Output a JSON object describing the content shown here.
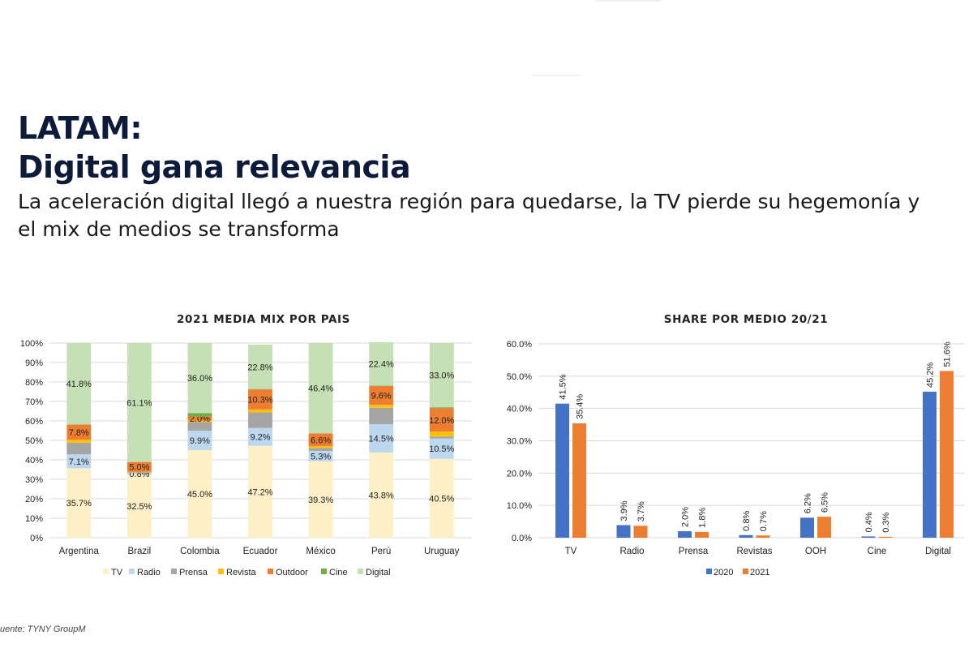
{
  "header": {
    "title_line1": "LATAM:",
    "title_line2": "Digital gana relevancia",
    "subtitle_line1": "La aceleración digital llegó a nuestra región para quedarse, la TV pierde su hegemonía y",
    "subtitle_line2": "el mix de medios se transforma"
  },
  "source": "uente: TYNY GroupM",
  "colors": {
    "TV": "#fdefc6",
    "Radio": "#bdd7ee",
    "Prensa": "#a5a5a5",
    "Revista": "#ffc000",
    "Outdoor": "#ed7d31",
    "Cine": "#70ad47",
    "Digital": "#c5e0b4",
    "y2020": "#4472c4",
    "y2021": "#ed7d31"
  },
  "chart_data": [
    {
      "type": "bar",
      "stacked": true,
      "title": "2021 MEDIA MIX POR PAIS",
      "categories": [
        "Argentina",
        "Brazil",
        "Colombia",
        "Ecuador",
        "México",
        "Perú",
        "Uruguay"
      ],
      "y_ticks": [
        "0%",
        "10%",
        "20%",
        "30%",
        "40%",
        "50%",
        "60%",
        "70%",
        "80%",
        "90%",
        "100%"
      ],
      "ylim": [
        0,
        100
      ],
      "legend_position": "bottom",
      "series": [
        {
          "name": "TV",
          "values": [
            35.7,
            32.5,
            45.0,
            47.2,
            39.3,
            43.8,
            40.5
          ],
          "labels": [
            "35.7%",
            "32.5%",
            "45.0%",
            "47.2%",
            "39.3%",
            "43.8%",
            "40.5%"
          ]
        },
        {
          "name": "Radio",
          "values": [
            7.1,
            0.8,
            9.9,
            9.2,
            5.3,
            14.5,
            10.5
          ],
          "labels": [
            "7.1%",
            "0.8%",
            "9.9%",
            "9.2%",
            "5.3%",
            "14.5%",
            "10.5%"
          ]
        },
        {
          "name": "Prensa",
          "values": [
            6.0,
            0.3,
            4.5,
            8.0,
            1.5,
            8.5,
            1.0
          ],
          "labels": [
            "",
            "",
            "",
            "",
            "",
            "",
            ""
          ]
        },
        {
          "name": "Revista",
          "values": [
            1.5,
            0.3,
            0.8,
            1.5,
            0.9,
            1.5,
            2.5
          ],
          "labels": [
            "",
            "",
            "",
            "",
            "",
            "",
            ""
          ]
        },
        {
          "name": "Outdoor",
          "values": [
            7.8,
            5.0,
            2.0,
            10.3,
            6.6,
            9.6,
            12.0
          ],
          "labels": [
            "7.8%",
            "5.0%",
            "2.0%",
            "10.3%",
            "6.6%",
            "9.6%",
            "12.0%"
          ]
        },
        {
          "name": "Cine",
          "values": [
            0.1,
            0.0,
            1.8,
            0.2,
            0.0,
            0.2,
            0.5
          ],
          "labels": [
            "",
            "",
            "",
            "",
            "",
            "",
            ""
          ]
        },
        {
          "name": "Digital",
          "values": [
            41.8,
            61.1,
            36.0,
            22.8,
            46.4,
            22.4,
            33.0
          ],
          "labels": [
            "41.8%",
            "61.1%",
            "36.0%",
            "22.8%",
            "46.4%",
            "22.4%",
            "33.0%"
          ]
        }
      ]
    },
    {
      "type": "bar",
      "title": "SHARE POR MEDIO 20/21",
      "categories": [
        "TV",
        "Radio",
        "Prensa",
        "Revistas",
        "OOH",
        "Cine",
        "Digital"
      ],
      "y_ticks": [
        "0.0%",
        "10.0%",
        "20.0%",
        "30.0%",
        "40.0%",
        "50.0%",
        "60.0%"
      ],
      "ylim": [
        0,
        60
      ],
      "legend_position": "bottom",
      "series": [
        {
          "name": "2020",
          "values": [
            41.5,
            3.9,
            2.0,
            0.8,
            6.2,
            0.4,
            45.2
          ],
          "labels": [
            "41.5%",
            "3.9%",
            "2.0%",
            "0.8%",
            "6.2%",
            "0.4%",
            "45.2%"
          ]
        },
        {
          "name": "2021",
          "values": [
            35.4,
            3.7,
            1.8,
            0.7,
            6.5,
            0.3,
            51.6
          ],
          "labels": [
            "35.4%",
            "3.7%",
            "1.8%",
            "0.7%",
            "6.5%",
            "0.3%",
            "51.6%"
          ]
        }
      ]
    }
  ]
}
